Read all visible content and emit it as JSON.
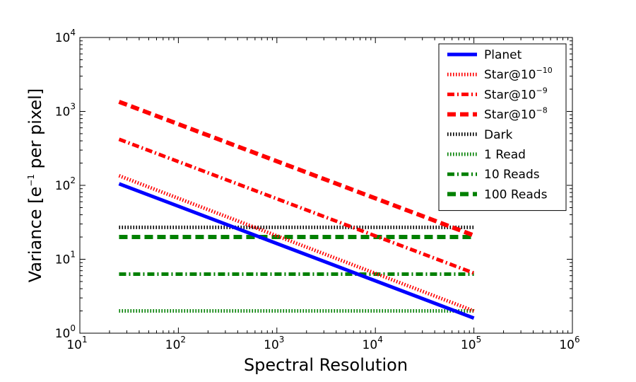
{
  "chart_data": {
    "type": "line",
    "xscale": "log",
    "yscale": "log",
    "xlim": [
      10,
      1000000
    ],
    "ylim": [
      1,
      10000
    ],
    "xlabel": "Spectral Resolution",
    "ylabel": {
      "prefix": "Variance [e",
      "sup": "−1",
      "suffix": " per pixel]"
    },
    "x_ticks": [
      {
        "base": "10",
        "exp": "1",
        "value": 10
      },
      {
        "base": "10",
        "exp": "2",
        "value": 100
      },
      {
        "base": "10",
        "exp": "3",
        "value": 1000
      },
      {
        "base": "10",
        "exp": "4",
        "value": 10000
      },
      {
        "base": "10",
        "exp": "5",
        "value": 100000
      },
      {
        "base": "10",
        "exp": "6",
        "value": 1000000
      }
    ],
    "y_ticks": [
      {
        "base": "10",
        "exp": "0",
        "value": 1
      },
      {
        "base": "10",
        "exp": "1",
        "value": 10
      },
      {
        "base": "10",
        "exp": "2",
        "value": 100
      },
      {
        "base": "10",
        "exp": "3",
        "value": 1000
      },
      {
        "base": "10",
        "exp": "4",
        "value": 10000
      }
    ],
    "series": [
      {
        "name": "Planet",
        "legend": {
          "text": "Planet",
          "exp": ""
        },
        "color": "#0000ff",
        "style": "solid",
        "x": [
          25,
          100000
        ],
        "y": [
          105,
          1.6
        ]
      },
      {
        "name": "Star@10^-10",
        "legend": {
          "text": "Star@10",
          "exp": "−10"
        },
        "color": "#ff0000",
        "style": "dotted",
        "x": [
          25,
          100000
        ],
        "y": [
          135,
          2.0
        ]
      },
      {
        "name": "Star@10^-9",
        "legend": {
          "text": "Star@10",
          "exp": "−9"
        },
        "color": "#ff0000",
        "style": "dashdot",
        "x": [
          25,
          100000
        ],
        "y": [
          420,
          6.5
        ]
      },
      {
        "name": "Star@10^-8",
        "legend": {
          "text": "Star@10",
          "exp": "−8"
        },
        "color": "#ff0000",
        "style": "dashed",
        "x": [
          25,
          100000
        ],
        "y": [
          1350,
          21
        ]
      },
      {
        "name": "Dark",
        "legend": {
          "text": "Dark",
          "exp": ""
        },
        "color": "#000000",
        "style": "dotted",
        "x": [
          25,
          100000
        ],
        "y": [
          27,
          27
        ]
      },
      {
        "name": "1 Read",
        "legend": {
          "text": "1 Read",
          "exp": ""
        },
        "color": "#008000",
        "style": "dotted",
        "x": [
          25,
          100000
        ],
        "y": [
          2,
          2
        ]
      },
      {
        "name": "10 Reads",
        "legend": {
          "text": "10 Reads",
          "exp": ""
        },
        "color": "#008000",
        "style": "dashdot",
        "x": [
          25,
          100000
        ],
        "y": [
          6.3,
          6.3
        ]
      },
      {
        "name": "100 Reads",
        "legend": {
          "text": "100 Reads",
          "exp": ""
        },
        "color": "#008000",
        "style": "dashed",
        "x": [
          25,
          100000
        ],
        "y": [
          20,
          20
        ]
      }
    ],
    "legend_position": "top-right",
    "grid": false
  }
}
